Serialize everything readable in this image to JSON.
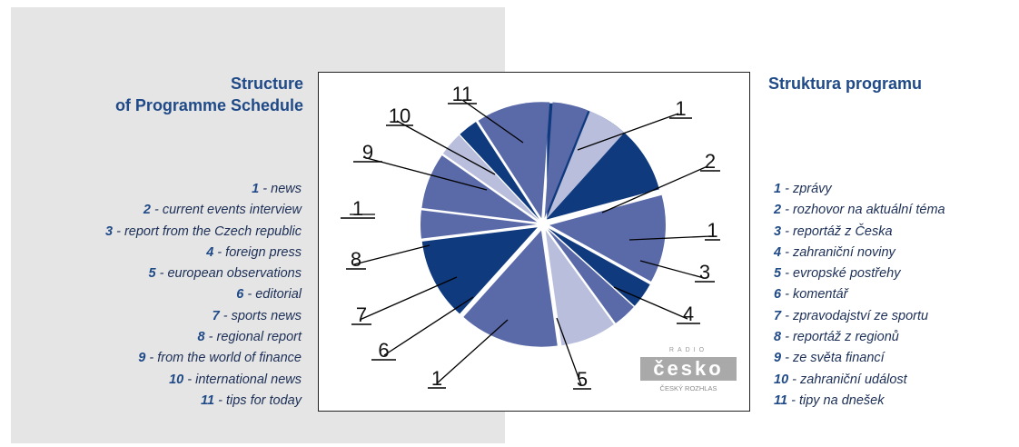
{
  "title_en": [
    "Structure",
    "of Programme Schedule"
  ],
  "title_cz": "Struktura programu",
  "legend_en": [
    {
      "num": "1",
      "text": " - news"
    },
    {
      "num": "2",
      "text": " - current events interview"
    },
    {
      "num": "3",
      "text": " - report from the Czech republic"
    },
    {
      "num": "4",
      "text": " - foreign press"
    },
    {
      "num": "5",
      "text": " - european observations"
    },
    {
      "num": "6",
      "text": " - editorial"
    },
    {
      "num": "7",
      "text": " - sports news"
    },
    {
      "num": "8",
      "text": " - regional report"
    },
    {
      "num": "9",
      "text": " - from the world of finance"
    },
    {
      "num": "10",
      "text": " - international news"
    },
    {
      "num": "11",
      "text": " - tips for today"
    }
  ],
  "legend_cz": [
    {
      "num": "1",
      "text": " - zprávy"
    },
    {
      "num": "2",
      "text": " - rozhovor na aktuální téma"
    },
    {
      "num": "3",
      "text": " - reportáž z Česka"
    },
    {
      "num": "4",
      "text": " - zahraniční noviny"
    },
    {
      "num": "5",
      "text": " - evropské postřehy"
    },
    {
      "num": "6",
      "text": " - komentář"
    },
    {
      "num": "7",
      "text": " - zpravodajství ze sportu"
    },
    {
      "num": "8",
      "text": " - reportáž z regionů"
    },
    {
      "num": "9",
      "text": " - ze světa financí"
    },
    {
      "num": "10",
      "text": " - zahraniční událost"
    },
    {
      "num": "11",
      "text": " - tipy na dnešek"
    }
  ],
  "logo": {
    "top": "RADIO",
    "main": "česko",
    "sub": "ČESKÝ ROZHLAS"
  },
  "colors": {
    "dark": "#0f3a7e",
    "medium": "#5a6aa8",
    "light": "#b8bedb",
    "title": "#1f4a87"
  },
  "chart_data": {
    "type": "pie",
    "exploded": true,
    "slices": [
      {
        "label": "1",
        "start_deg": 0,
        "end_deg": 75,
        "color": "dark"
      },
      {
        "label": "2",
        "start_deg": 75,
        "end_deg": 119,
        "color": "medium"
      },
      {
        "label": "1",
        "start_deg": 119,
        "end_deg": 132,
        "color": "dark"
      },
      {
        "label": "3",
        "start_deg": 132,
        "end_deg": 144,
        "color": "medium"
      },
      {
        "label": "4",
        "start_deg": 144,
        "end_deg": 172,
        "color": "light"
      },
      {
        "label": "5",
        "start_deg": 172,
        "end_deg": 222,
        "color": "medium"
      },
      {
        "label": "1",
        "start_deg": 222,
        "end_deg": 263,
        "color": "dark"
      },
      {
        "label": "6",
        "start_deg": 263,
        "end_deg": 277,
        "color": "medium"
      },
      {
        "label": "7",
        "start_deg": 277,
        "end_deg": 305,
        "color": "medium"
      },
      {
        "label": "8",
        "start_deg": 305,
        "end_deg": 317,
        "color": "light"
      },
      {
        "label": "1",
        "start_deg": 317,
        "end_deg": 327,
        "color": "dark"
      },
      {
        "label": "9",
        "start_deg": 327,
        "end_deg": 364,
        "color": "medium"
      },
      {
        "label": "10",
        "start_deg": 364,
        "end_deg": 382,
        "color": "medium"
      },
      {
        "label": "11",
        "start_deg": 382,
        "end_deg": 402,
        "color": "light"
      }
    ]
  }
}
